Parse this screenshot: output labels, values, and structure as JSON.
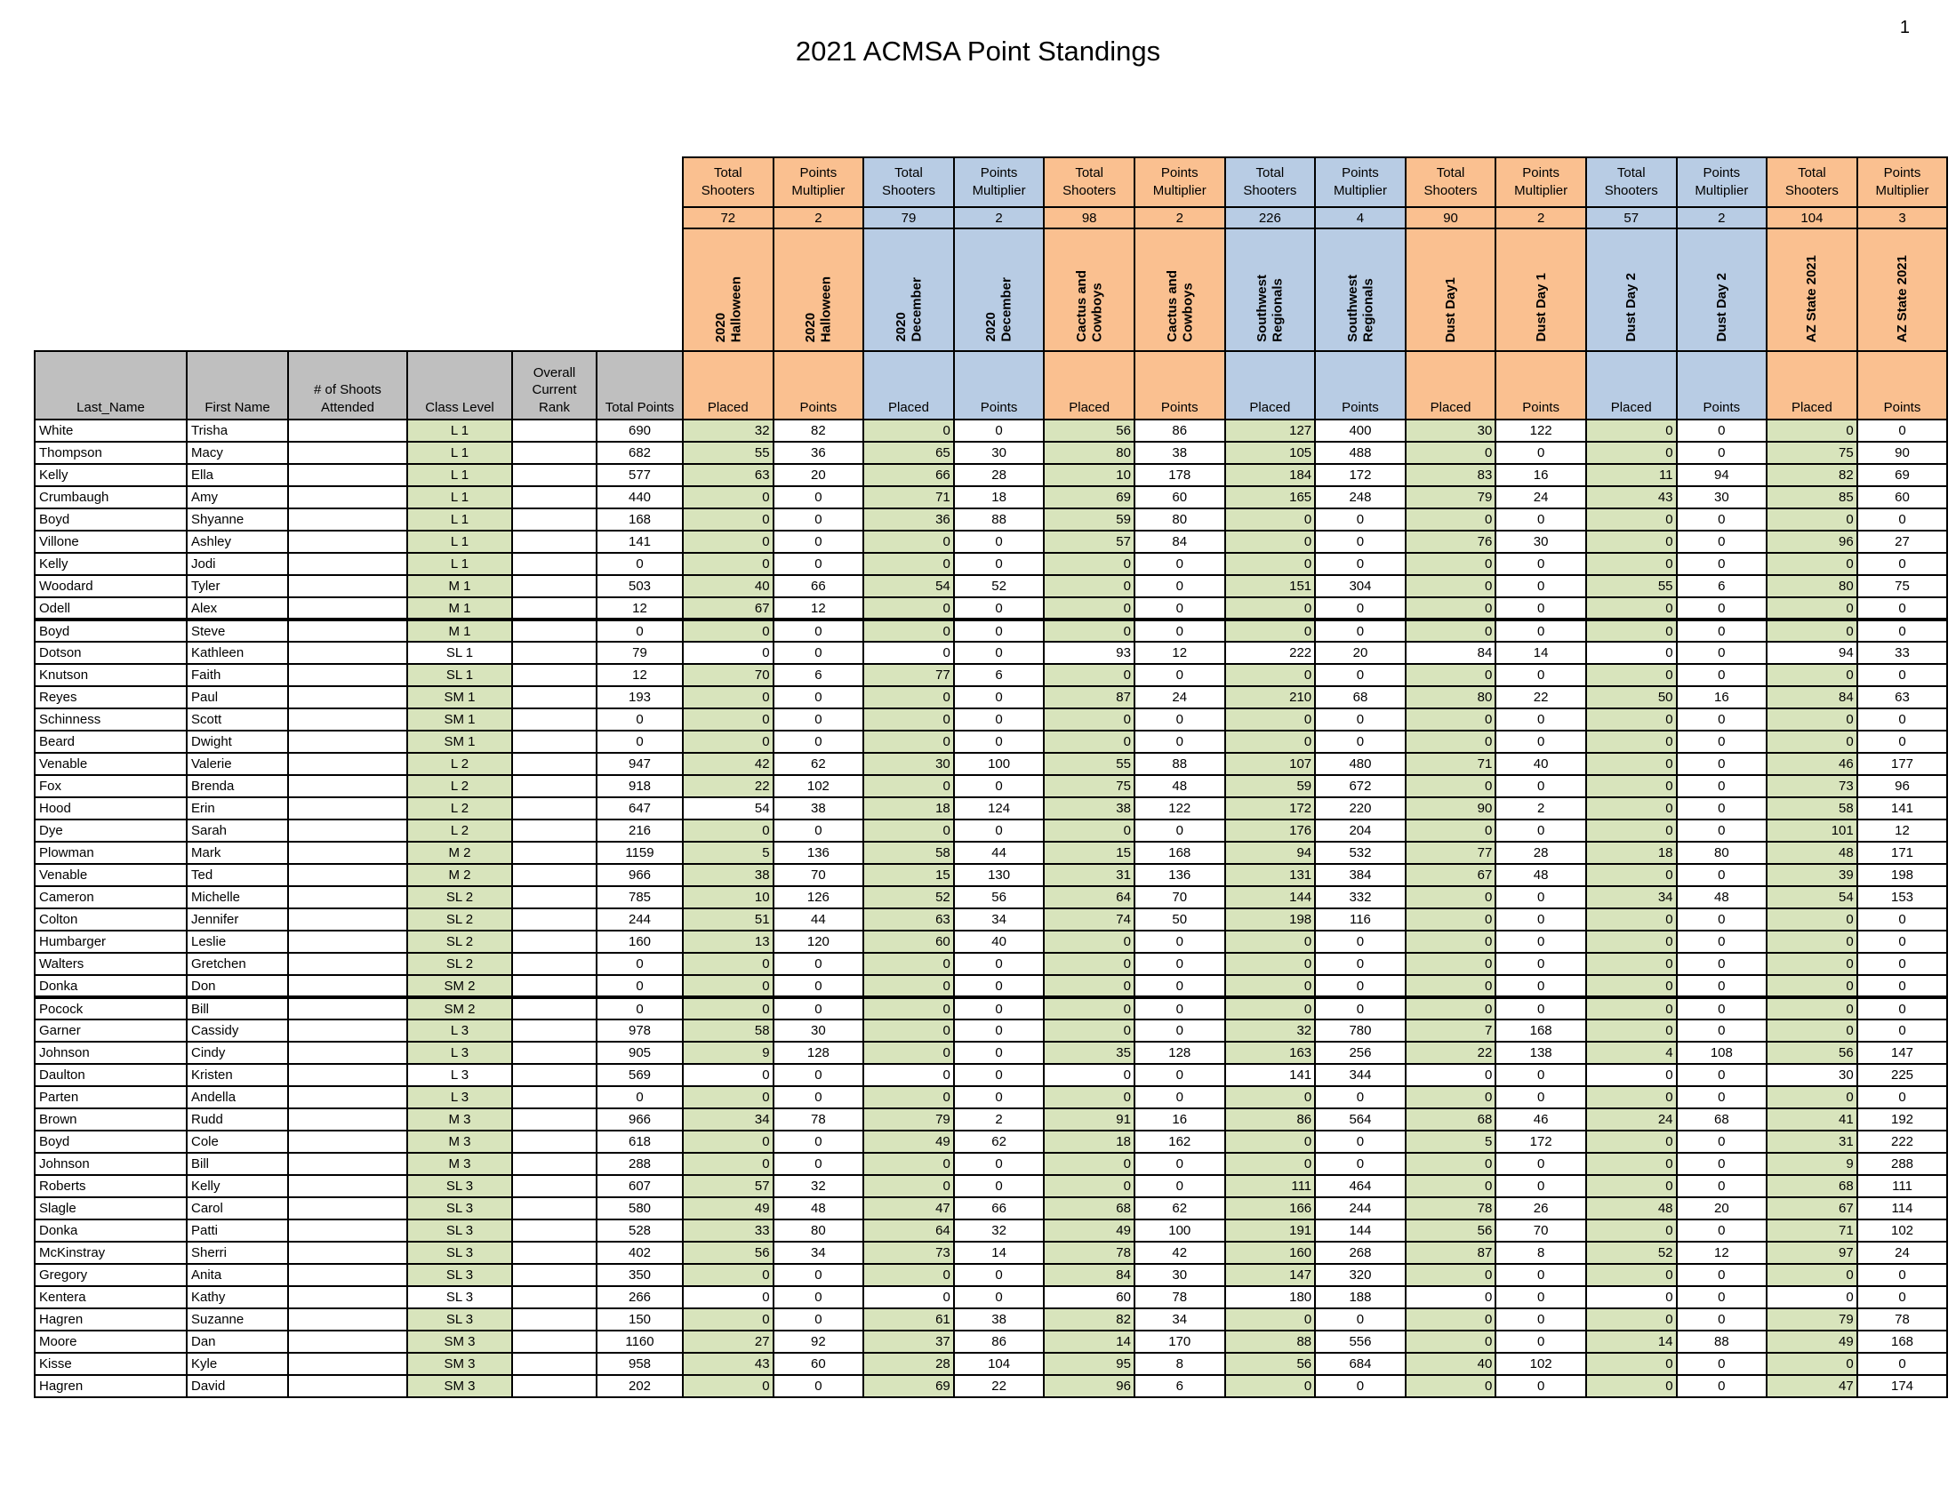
{
  "page": {
    "title": "2021 ACMSA Point Standings",
    "page_number": "1"
  },
  "colors": {
    "orange": "#FAC090",
    "blue": "#B8CCE4",
    "green": "#D8E4BC",
    "gray": "#BFBFBF"
  },
  "table": {
    "left_headers": [
      "Last_Name",
      "First Name",
      "# of Shoots Attended",
      "Class Level",
      "Overall Current Rank",
      "Total Points"
    ],
    "shooters_label": "Total Shooters",
    "multiplier_label": "Points Multiplier",
    "placed_label": "Placed",
    "points_label": "Points",
    "events": [
      {
        "name_placed": "2020\nHalloween",
        "name_points": "2020\nHalloween",
        "shooters": 72,
        "multiplier": 2,
        "color": "o"
      },
      {
        "name_placed": "2020\nDecember",
        "name_points": "2020\nDecember",
        "shooters": 79,
        "multiplier": 2,
        "color": "b"
      },
      {
        "name_placed": "Cactus and\nCowboys",
        "name_points": "Cactus and\nCowboys",
        "shooters": 98,
        "multiplier": 2,
        "color": "o"
      },
      {
        "name_placed": "Southwest\nRegionals",
        "name_points": "Southwest\nRegionals",
        "shooters": 226,
        "multiplier": 4,
        "color": "b"
      },
      {
        "name_placed": "Dust Day1",
        "name_points": "Dust Day 1",
        "shooters": 90,
        "multiplier": 2,
        "color": "o"
      },
      {
        "name_placed": "Dust Day 2",
        "name_points": "Dust Day 2",
        "shooters": 57,
        "multiplier": 2,
        "color": "b"
      },
      {
        "name_placed": "AZ State 2021",
        "name_points": "AZ State 2021",
        "shooters": 104,
        "multiplier": 3,
        "color": "o"
      }
    ],
    "rows": [
      {
        "last": "White",
        "first": "Trisha",
        "class": "L 1",
        "total": 690,
        "scores": [
          32,
          82,
          0,
          0,
          56,
          86,
          127,
          400,
          30,
          122,
          0,
          0,
          0,
          0
        ]
      },
      {
        "last": "Thompson",
        "first": "Macy",
        "class": "L 1",
        "total": 682,
        "scores": [
          55,
          36,
          65,
          30,
          80,
          38,
          105,
          488,
          0,
          0,
          0,
          0,
          75,
          90
        ]
      },
      {
        "last": "Kelly",
        "first": "Ella",
        "class": "L 1",
        "total": 577,
        "scores": [
          63,
          20,
          66,
          28,
          10,
          178,
          184,
          172,
          83,
          16,
          11,
          94,
          82,
          69
        ]
      },
      {
        "last": "Crumbaugh",
        "first": "Amy",
        "class": "L 1",
        "total": 440,
        "scores": [
          0,
          0,
          71,
          18,
          69,
          60,
          165,
          248,
          79,
          24,
          43,
          30,
          85,
          60
        ]
      },
      {
        "last": "Boyd",
        "first": "Shyanne",
        "class": "L 1",
        "total": 168,
        "scores": [
          0,
          0,
          36,
          88,
          59,
          80,
          0,
          0,
          0,
          0,
          0,
          0,
          0,
          0
        ]
      },
      {
        "last": "Villone",
        "first": "Ashley",
        "class": "L 1",
        "total": 141,
        "scores": [
          0,
          0,
          0,
          0,
          57,
          84,
          0,
          0,
          76,
          30,
          0,
          0,
          96,
          27
        ]
      },
      {
        "last": "Kelly",
        "first": "Jodi",
        "class": "L 1",
        "total": 0,
        "scores": [
          0,
          0,
          0,
          0,
          0,
          0,
          0,
          0,
          0,
          0,
          0,
          0,
          0,
          0
        ]
      },
      {
        "last": "Woodard",
        "first": "Tyler",
        "class": "M 1",
        "total": 503,
        "scores": [
          40,
          66,
          54,
          52,
          0,
          0,
          151,
          304,
          0,
          0,
          55,
          6,
          80,
          75
        ]
      },
      {
        "last": "Odell",
        "first": "Alex",
        "class": "M 1",
        "total": 12,
        "scores": [
          67,
          12,
          0,
          0,
          0,
          0,
          0,
          0,
          0,
          0,
          0,
          0,
          0,
          0
        ],
        "page_break": true
      },
      {
        "last": "Boyd",
        "first": "Steve",
        "class": "M 1",
        "total": 0,
        "scores": [
          0,
          0,
          0,
          0,
          0,
          0,
          0,
          0,
          0,
          0,
          0,
          0,
          0,
          0
        ]
      },
      {
        "last": "Dotson",
        "first": "Kathleen",
        "class": "SL 1",
        "total": 79,
        "scores": [
          0,
          0,
          0,
          0,
          93,
          12,
          222,
          20,
          84,
          14,
          0,
          0,
          94,
          33
        ],
        "unshaded": true
      },
      {
        "last": "Knutson",
        "first": "Faith",
        "class": "SL 1",
        "total": 12,
        "scores": [
          70,
          6,
          77,
          6,
          0,
          0,
          0,
          0,
          0,
          0,
          0,
          0,
          0,
          0
        ]
      },
      {
        "last": "Reyes",
        "first": "Paul",
        "class": "SM 1",
        "total": 193,
        "scores": [
          0,
          0,
          0,
          0,
          87,
          24,
          210,
          68,
          80,
          22,
          50,
          16,
          84,
          63
        ]
      },
      {
        "last": "Schinness",
        "first": "Scott",
        "class": "SM 1",
        "total": 0,
        "scores": [
          0,
          0,
          0,
          0,
          0,
          0,
          0,
          0,
          0,
          0,
          0,
          0,
          0,
          0
        ]
      },
      {
        "last": "Beard",
        "first": "Dwight",
        "class": "SM 1",
        "total": 0,
        "scores": [
          0,
          0,
          0,
          0,
          0,
          0,
          0,
          0,
          0,
          0,
          0,
          0,
          0,
          0
        ]
      },
      {
        "last": "Venable",
        "first": "Valerie",
        "class": "L 2",
        "total": 947,
        "scores": [
          42,
          62,
          30,
          100,
          55,
          88,
          107,
          480,
          71,
          40,
          0,
          0,
          46,
          177
        ]
      },
      {
        "last": "Fox",
        "first": "Brenda",
        "class": "L 2",
        "total": 918,
        "scores": [
          22,
          102,
          0,
          0,
          75,
          48,
          59,
          672,
          0,
          0,
          0,
          0,
          73,
          96
        ]
      },
      {
        "last": "Hood",
        "first": "Erin",
        "class": "L 2",
        "total": 647,
        "scores": [
          54,
          38,
          18,
          124,
          38,
          122,
          172,
          220,
          90,
          2,
          0,
          0,
          58,
          141
        ],
        "white_placed": [
          0
        ]
      },
      {
        "last": "Dye",
        "first": "Sarah",
        "class": "L 2",
        "total": 216,
        "scores": [
          0,
          0,
          0,
          0,
          0,
          0,
          176,
          204,
          0,
          0,
          0,
          0,
          101,
          12
        ]
      },
      {
        "last": "Plowman",
        "first": "Mark",
        "class": "M 2",
        "total": 1159,
        "scores": [
          5,
          136,
          58,
          44,
          15,
          168,
          94,
          532,
          77,
          28,
          18,
          80,
          48,
          171
        ]
      },
      {
        "last": "Venable",
        "first": "Ted",
        "class": "M 2",
        "total": 966,
        "scores": [
          38,
          70,
          15,
          130,
          31,
          136,
          131,
          384,
          67,
          48,
          0,
          0,
          39,
          198
        ]
      },
      {
        "last": "Cameron",
        "first": "Michelle",
        "class": "SL 2",
        "total": 785,
        "scores": [
          10,
          126,
          52,
          56,
          64,
          70,
          144,
          332,
          0,
          0,
          34,
          48,
          54,
          153
        ]
      },
      {
        "last": "Colton",
        "first": "Jennifer",
        "class": "SL 2",
        "total": 244,
        "scores": [
          51,
          44,
          63,
          34,
          74,
          50,
          198,
          116,
          0,
          0,
          0,
          0,
          0,
          0
        ]
      },
      {
        "last": "Humbarger",
        "first": "Leslie",
        "class": "SL 2",
        "total": 160,
        "scores": [
          13,
          120,
          60,
          40,
          0,
          0,
          0,
          0,
          0,
          0,
          0,
          0,
          0,
          0
        ]
      },
      {
        "last": "Walters",
        "first": "Gretchen",
        "class": "SL 2",
        "total": 0,
        "scores": [
          0,
          0,
          0,
          0,
          0,
          0,
          0,
          0,
          0,
          0,
          0,
          0,
          0,
          0
        ]
      },
      {
        "last": "Donka",
        "first": "Don",
        "class": "SM 2",
        "total": 0,
        "scores": [
          0,
          0,
          0,
          0,
          0,
          0,
          0,
          0,
          0,
          0,
          0,
          0,
          0,
          0
        ],
        "page_break": true
      },
      {
        "last": "Pocock",
        "first": "Bill",
        "class": "SM 2",
        "total": 0,
        "scores": [
          0,
          0,
          0,
          0,
          0,
          0,
          0,
          0,
          0,
          0,
          0,
          0,
          0,
          0
        ]
      },
      {
        "last": "Garner",
        "first": "Cassidy",
        "class": "L 3",
        "total": 978,
        "scores": [
          58,
          30,
          0,
          0,
          0,
          0,
          32,
          780,
          7,
          168,
          0,
          0,
          0,
          0
        ]
      },
      {
        "last": "Johnson",
        "first": "Cindy",
        "class": "L 3",
        "total": 905,
        "scores": [
          9,
          128,
          0,
          0,
          35,
          128,
          163,
          256,
          22,
          138,
          4,
          108,
          56,
          147
        ]
      },
      {
        "last": "Daulton",
        "first": "Kristen",
        "class": "L 3",
        "total": 569,
        "scores": [
          0,
          0,
          0,
          0,
          0,
          0,
          141,
          344,
          0,
          0,
          0,
          0,
          30,
          225
        ],
        "unshaded": true
      },
      {
        "last": "Parten",
        "first": "Andella",
        "class": "L 3",
        "total": 0,
        "scores": [
          0,
          0,
          0,
          0,
          0,
          0,
          0,
          0,
          0,
          0,
          0,
          0,
          0,
          0
        ]
      },
      {
        "last": "Brown",
        "first": "Rudd",
        "class": "M 3",
        "total": 966,
        "scores": [
          34,
          78,
          79,
          2,
          91,
          16,
          86,
          564,
          68,
          46,
          24,
          68,
          41,
          192
        ]
      },
      {
        "last": "Boyd",
        "first": "Cole",
        "class": "M 3",
        "total": 618,
        "scores": [
          0,
          0,
          49,
          62,
          18,
          162,
          0,
          0,
          5,
          172,
          0,
          0,
          31,
          222
        ]
      },
      {
        "last": "Johnson",
        "first": "Bill",
        "class": "M 3",
        "total": 288,
        "scores": [
          0,
          0,
          0,
          0,
          0,
          0,
          0,
          0,
          0,
          0,
          0,
          0,
          9,
          288
        ]
      },
      {
        "last": "Roberts",
        "first": "Kelly",
        "class": "SL 3",
        "total": 607,
        "scores": [
          57,
          32,
          0,
          0,
          0,
          0,
          111,
          464,
          0,
          0,
          0,
          0,
          68,
          111
        ]
      },
      {
        "last": "Slagle",
        "first": "Carol",
        "class": "SL 3",
        "total": 580,
        "scores": [
          49,
          48,
          47,
          66,
          68,
          62,
          166,
          244,
          78,
          26,
          48,
          20,
          67,
          114
        ]
      },
      {
        "last": "Donka",
        "first": "Patti",
        "class": "SL 3",
        "total": 528,
        "scores": [
          33,
          80,
          64,
          32,
          49,
          100,
          191,
          144,
          56,
          70,
          0,
          0,
          71,
          102
        ]
      },
      {
        "last": "McKinstray",
        "first": "Sherri",
        "class": "SL 3",
        "total": 402,
        "scores": [
          56,
          34,
          73,
          14,
          78,
          42,
          160,
          268,
          87,
          8,
          52,
          12,
          97,
          24
        ]
      },
      {
        "last": "Gregory",
        "first": "Anita",
        "class": "SL 3",
        "total": 350,
        "scores": [
          0,
          0,
          0,
          0,
          84,
          30,
          147,
          320,
          0,
          0,
          0,
          0,
          0,
          0
        ]
      },
      {
        "last": "Kentera",
        "first": "Kathy",
        "class": "SL 3",
        "total": 266,
        "scores": [
          0,
          0,
          0,
          0,
          60,
          78,
          180,
          188,
          0,
          0,
          0,
          0,
          0,
          0
        ],
        "unshaded": true
      },
      {
        "last": "Hagren",
        "first": "Suzanne",
        "class": "SL 3",
        "total": 150,
        "scores": [
          0,
          0,
          61,
          38,
          82,
          34,
          0,
          0,
          0,
          0,
          0,
          0,
          79,
          78
        ]
      },
      {
        "last": "Moore",
        "first": "Dan",
        "class": "SM 3",
        "total": 1160,
        "scores": [
          27,
          92,
          37,
          86,
          14,
          170,
          88,
          556,
          0,
          0,
          14,
          88,
          49,
          168
        ]
      },
      {
        "last": "Kisse",
        "first": "Kyle",
        "class": "SM 3",
        "total": 958,
        "scores": [
          43,
          60,
          28,
          104,
          95,
          8,
          56,
          684,
          40,
          102,
          0,
          0,
          0,
          0
        ]
      },
      {
        "last": "Hagren",
        "first": "David",
        "class": "SM 3",
        "total": 202,
        "scores": [
          0,
          0,
          69,
          22,
          96,
          6,
          0,
          0,
          0,
          0,
          0,
          0,
          47,
          174
        ]
      }
    ]
  }
}
